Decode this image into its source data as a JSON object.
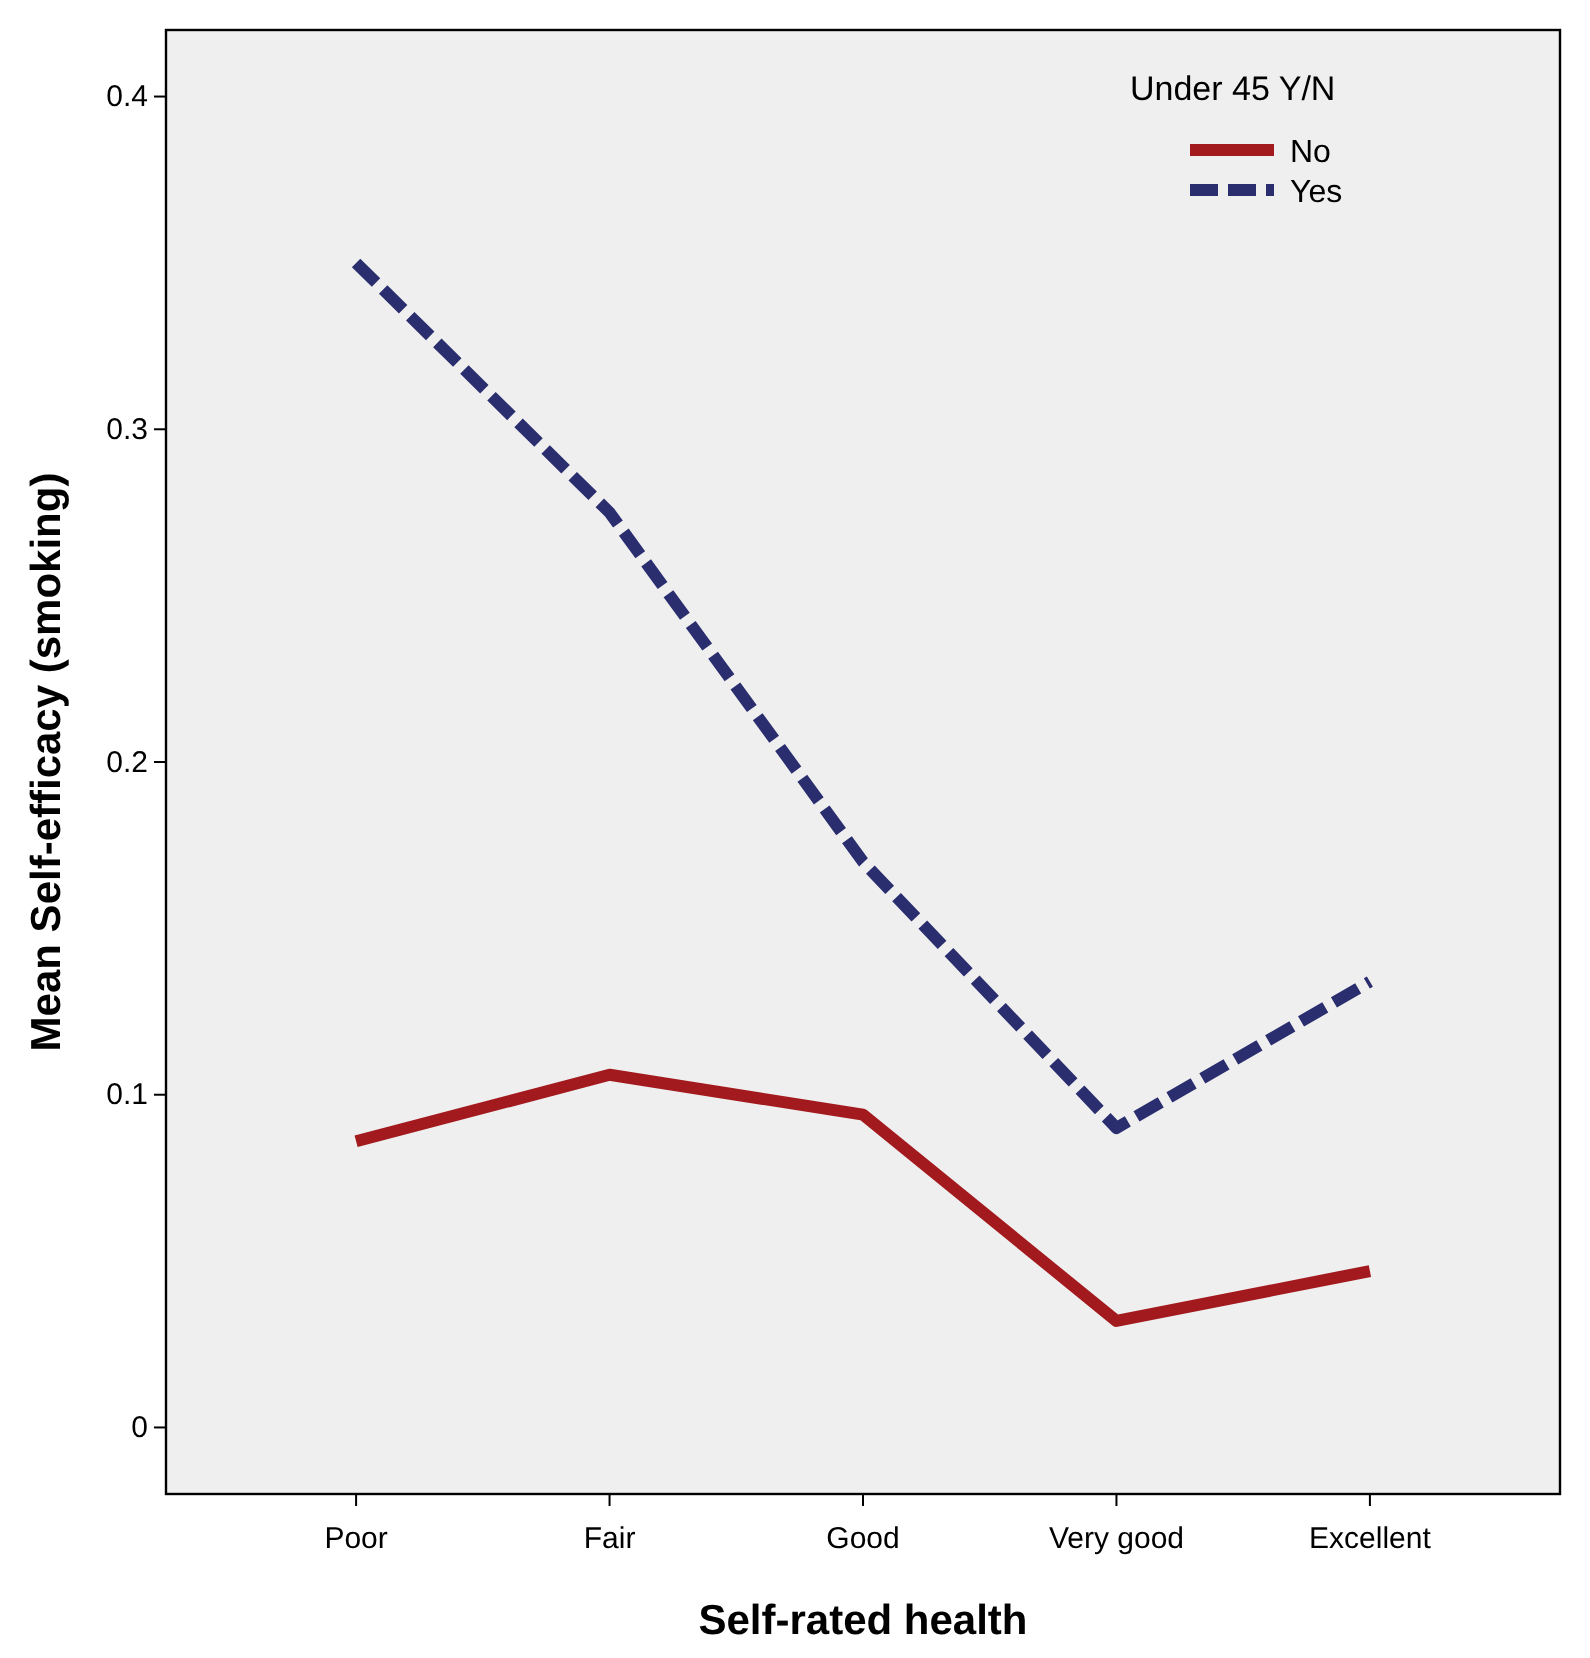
{
  "chart_data": {
    "type": "line",
    "xlabel": "Self-rated health",
    "ylabel": "Mean Self-efficacy (smoking)",
    "legend_title": "Under 45 Y/N",
    "legend": "top right",
    "grid": false,
    "categories": [
      "Poor",
      "Fair",
      "Good",
      "Very good",
      "Excellent"
    ],
    "ylim": [
      -0.02,
      0.42
    ],
    "yticks": [
      {
        "value": 0,
        "label": "0"
      },
      0.1,
      0.2,
      0.3,
      0.4
    ],
    "series": [
      {
        "name": "No",
        "color": "#a31a1e",
        "line_style": "solid",
        "values": [
          0.086,
          0.106,
          0.094,
          0.032,
          0.047
        ]
      },
      {
        "name": "Yes",
        "color": "#2a2d6e",
        "line_style": "dashed",
        "values": [
          0.35,
          0.275,
          0.17,
          0.09,
          0.134
        ]
      }
    ]
  }
}
